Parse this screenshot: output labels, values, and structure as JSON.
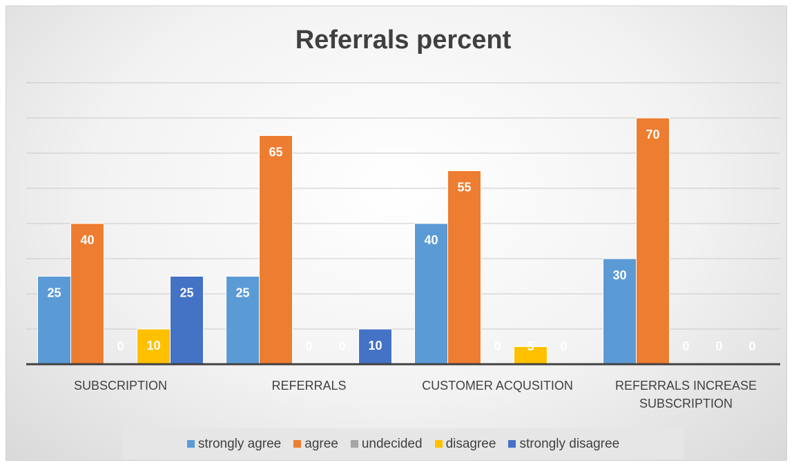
{
  "chart_data": {
    "type": "bar",
    "title": "Referrals percent",
    "categories": [
      "SUBSCRIPTION",
      "REFERRALS",
      "CUSTOMER ACQUSITION",
      "REFERRALS INCREASE SUBSCRIPTION"
    ],
    "series": [
      {
        "name": "strongly agree",
        "color": "#5b9bd5",
        "values": [
          25,
          25,
          40,
          30
        ]
      },
      {
        "name": "agree",
        "color": "#ed7d31",
        "values": [
          40,
          65,
          55,
          70
        ]
      },
      {
        "name": "undecided",
        "color": "#a5a5a5",
        "values": [
          0,
          0,
          0,
          0
        ]
      },
      {
        "name": "disagree",
        "color": "#ffc000",
        "values": [
          10,
          0,
          5,
          0
        ]
      },
      {
        "name": "strongly disagree",
        "color": "#4472c4",
        "values": [
          25,
          10,
          0,
          0
        ]
      }
    ],
    "ylim": [
      0,
      80
    ],
    "yticks": [
      0,
      10,
      20,
      30,
      40,
      50,
      60,
      70,
      80
    ],
    "grid": true,
    "legend": "bottom"
  }
}
